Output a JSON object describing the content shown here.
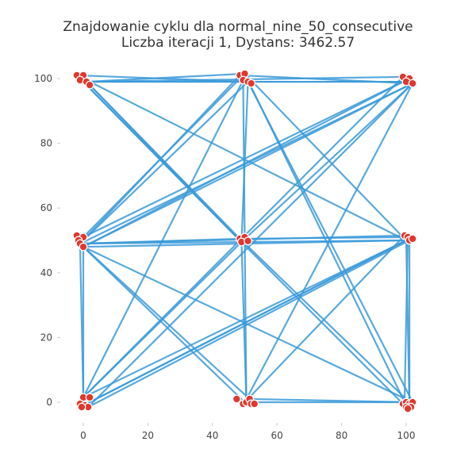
{
  "chart_data": {
    "type": "line",
    "title": "Znajdowanie cyklu dla normal_nine_50_consecutive",
    "subtitle": "Liczba iteracji 1, Dystans: 3462.57",
    "xlabel": "",
    "ylabel": "",
    "xlim": [
      -7,
      103
    ],
    "ylim": [
      -7,
      103
    ],
    "xticks": [
      0,
      20,
      40,
      60,
      80,
      100
    ],
    "yticks": [
      0,
      20,
      40,
      60,
      80,
      100
    ],
    "grid": false,
    "colors": {
      "path": "#3a9ad9",
      "points": "#e0382e",
      "point_edge": "#ffffff",
      "title": "#333333",
      "axis_text": "#444444"
    },
    "points": [
      [
        -2,
        101
      ],
      [
        0,
        101
      ],
      [
        -1,
        99.5
      ],
      [
        1,
        99
      ],
      [
        2,
        98
      ],
      [
        48.5,
        101
      ],
      [
        50,
        101.5
      ],
      [
        49.5,
        99.5
      ],
      [
        51,
        99
      ],
      [
        52,
        98.5
      ],
      [
        99,
        100.5
      ],
      [
        101,
        100
      ],
      [
        100,
        99
      ],
      [
        102,
        98.5
      ],
      [
        -2,
        51.5
      ],
      [
        0,
        51
      ],
      [
        -1.5,
        50
      ],
      [
        -1,
        49
      ],
      [
        0,
        48
      ],
      [
        48.5,
        50.5
      ],
      [
        50,
        51
      ],
      [
        49,
        49.5
      ],
      [
        51,
        49.8
      ],
      [
        99.5,
        51.5
      ],
      [
        100.5,
        51
      ],
      [
        101,
        50
      ],
      [
        102,
        50.5
      ],
      [
        0,
        1.5
      ],
      [
        2,
        1.5
      ],
      [
        -1,
        -0.5
      ],
      [
        0.5,
        -1
      ],
      [
        1.5,
        -1.5
      ],
      [
        -0.5,
        -1.5
      ],
      [
        47.5,
        1
      ],
      [
        49.5,
        -0.5
      ],
      [
        50.5,
        0
      ],
      [
        51.5,
        1
      ],
      [
        52,
        -0.5
      ],
      [
        53,
        -0.5
      ],
      [
        99,
        -0.5
      ],
      [
        100,
        0
      ],
      [
        101,
        -0.5
      ],
      [
        102,
        0
      ],
      [
        100,
        -1.5
      ],
      [
        101.5,
        -1.5
      ],
      [
        100.5,
        -2
      ]
    ],
    "path": [
      [
        -2,
        101
      ],
      [
        51,
        99
      ],
      [
        100,
        99
      ],
      [
        1,
        99
      ],
      [
        51,
        99
      ],
      [
        -1,
        49
      ],
      [
        102,
        98.5
      ],
      [
        0,
        48
      ],
      [
        101,
        100
      ],
      [
        0,
        51
      ],
      [
        50,
        101.5
      ],
      [
        1,
        99
      ],
      [
        99,
        100.5
      ],
      [
        0,
        1.5
      ],
      [
        49.5,
        99.5
      ],
      [
        50.5,
        0
      ],
      [
        49,
        49.5
      ],
      [
        2,
        98
      ],
      [
        48.5,
        50.5
      ],
      [
        101,
        0
      ],
      [
        51.5,
        1
      ],
      [
        -1,
        49
      ],
      [
        48.5,
        101
      ],
      [
        102,
        98.5
      ],
      [
        49,
        49.5
      ],
      [
        -2,
        101
      ],
      [
        100,
        50
      ],
      [
        0,
        -1
      ],
      [
        100,
        50
      ],
      [
        50,
        101.5
      ],
      [
        100.5,
        -2
      ],
      [
        49,
        49.5
      ],
      [
        51,
        99
      ],
      [
        102,
        0
      ],
      [
        0,
        48
      ],
      [
        100,
        50
      ],
      [
        0,
        1.5
      ],
      [
        0,
        48
      ],
      [
        50,
        0
      ],
      [
        99.5,
        51.5
      ],
      [
        -1,
        49
      ],
      [
        48.5,
        50.5
      ],
      [
        100.5,
        51
      ],
      [
        99.5,
        0
      ],
      [
        50,
        0
      ],
      [
        102,
        98.5
      ],
      [
        1.5,
        -1.5
      ],
      [
        101,
        50
      ],
      [
        101,
        -1
      ],
      [
        100,
        50
      ],
      [
        -1,
        49
      ],
      [
        0,
        1.5
      ],
      [
        49,
        49.5
      ],
      [
        -2,
        101
      ]
    ]
  }
}
